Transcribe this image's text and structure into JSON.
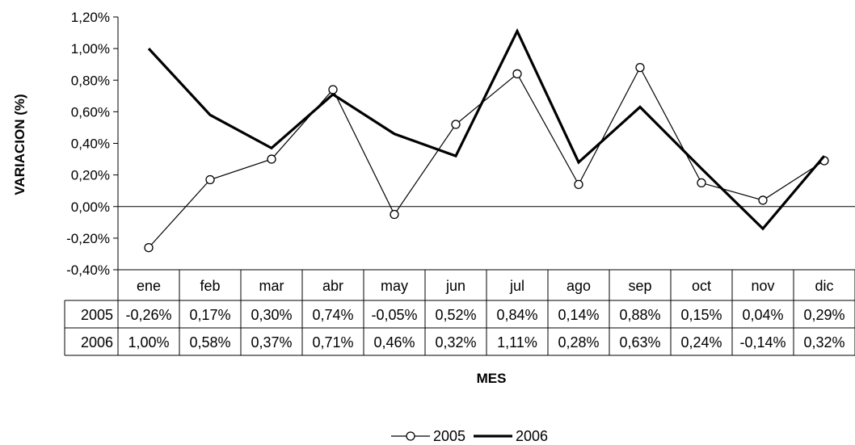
{
  "chart_data": {
    "type": "line",
    "xlabel": "MES",
    "ylabel": "VARIACION (%)",
    "categories": [
      "ene",
      "feb",
      "mar",
      "abr",
      "may",
      "jun",
      "jul",
      "ago",
      "sep",
      "oct",
      "nov",
      "dic"
    ],
    "ylim": [
      -0.4,
      1.2
    ],
    "yticks": [
      -0.4,
      -0.2,
      0.0,
      0.2,
      0.4,
      0.6,
      0.8,
      1.0,
      1.2
    ],
    "ytick_labels": [
      "-0,40%",
      "-0,20%",
      "0,00%",
      "0,20%",
      "0,40%",
      "0,60%",
      "0,80%",
      "1,00%",
      "1,20%"
    ],
    "grid": false,
    "legend_position": "bottom",
    "series": [
      {
        "name": "2005",
        "marker": "open-circle",
        "line": "thin",
        "color": "#000000",
        "values": [
          -0.26,
          0.17,
          0.3,
          0.74,
          -0.05,
          0.52,
          0.84,
          0.14,
          0.88,
          0.15,
          0.04,
          0.29
        ],
        "labels": [
          "-0,26%",
          "0,17%",
          "0,30%",
          "0,74%",
          "-0,05%",
          "0,52%",
          "0,84%",
          "0,14%",
          "0,88%",
          "0,15%",
          "0,04%",
          "0,29%"
        ]
      },
      {
        "name": "2006",
        "marker": "none",
        "line": "thick",
        "color": "#000000",
        "values": [
          1.0,
          0.58,
          0.37,
          0.71,
          0.46,
          0.32,
          1.11,
          0.28,
          0.63,
          0.24,
          -0.14,
          0.32
        ],
        "labels": [
          "1,00%",
          "0,58%",
          "0,37%",
          "0,71%",
          "0,46%",
          "0,32%",
          "1,11%",
          "0,28%",
          "0,63%",
          "0,24%",
          "-0,14%",
          "0,32%"
        ]
      }
    ]
  }
}
